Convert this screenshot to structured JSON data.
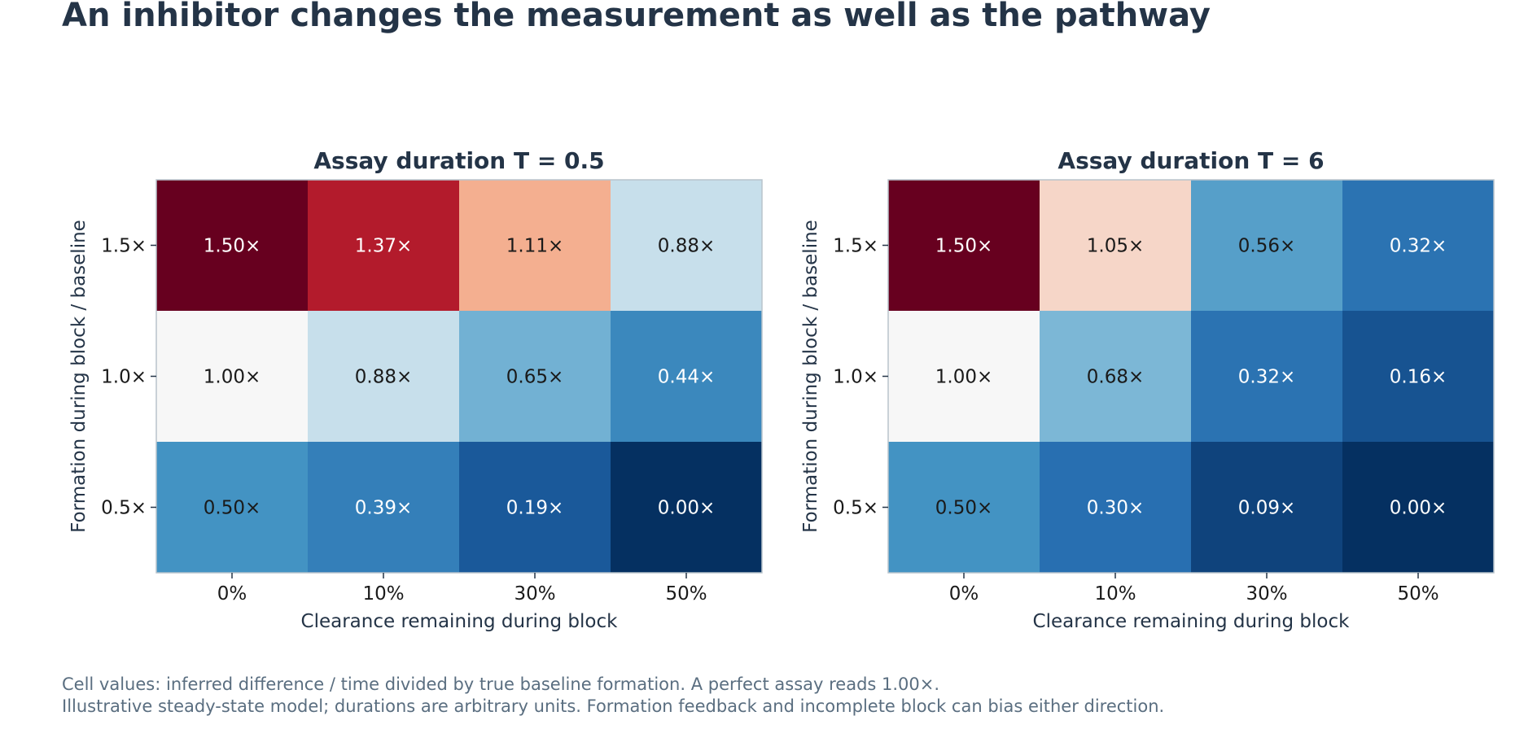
{
  "title": "An inhibitor changes the measurement as well as the pathway",
  "footnotes": [
    "Cell values: inferred difference / time divided by true baseline formation. A perfect assay reads 1.00×.",
    "Illustrative steady-state model; durations are arbitrary units. Formation feedback and incomplete block can bias either direction."
  ],
  "colors": {
    "title": "#243447",
    "axis": "#243447",
    "frame": "#b8c4cc",
    "footnote": "#5a6e80",
    "scale": [
      "#053061",
      "#2166ac",
      "#4393c3",
      "#92c5de",
      "#f7f7f7",
      "#f4a582",
      "#d6604d",
      "#b2182b",
      "#67001f"
    ]
  },
  "chart_data": [
    {
      "type": "heatmap",
      "title": "Assay duration T = 0.5",
      "xlabel": "Clearance remaining during block",
      "ylabel": "Formation during block / baseline",
      "x_ticks": [
        "0%",
        "10%",
        "30%",
        "50%"
      ],
      "y_ticks": [
        "1.5×",
        "1.0×",
        "0.5×"
      ],
      "values": [
        [
          1.5,
          1.37,
          1.11,
          0.88
        ],
        [
          1.0,
          0.88,
          0.65,
          0.44
        ],
        [
          0.5,
          0.39,
          0.19,
          0.0
        ]
      ],
      "labels": [
        [
          "1.50×",
          "1.37×",
          "1.11×",
          "0.88×"
        ],
        [
          "1.00×",
          "0.88×",
          "0.65×",
          "0.44×"
        ],
        [
          "0.50×",
          "0.39×",
          "0.19×",
          "0.00×"
        ]
      ],
      "color_range": [
        0,
        1.5
      ],
      "color_center": 1.0
    },
    {
      "type": "heatmap",
      "title": "Assay duration T = 6",
      "xlabel": "Clearance remaining during block",
      "ylabel": "Formation during block / baseline",
      "x_ticks": [
        "0%",
        "10%",
        "30%",
        "50%"
      ],
      "y_ticks": [
        "1.5×",
        "1.0×",
        "0.5×"
      ],
      "values": [
        [
          1.5,
          1.05,
          0.56,
          0.32
        ],
        [
          1.0,
          0.68,
          0.32,
          0.16
        ],
        [
          0.5,
          0.3,
          0.09,
          0.0
        ]
      ],
      "labels": [
        [
          "1.50×",
          "1.05×",
          "0.56×",
          "0.32×"
        ],
        [
          "1.00×",
          "0.68×",
          "0.32×",
          "0.16×"
        ],
        [
          "0.50×",
          "0.30×",
          "0.09×",
          "0.00×"
        ]
      ],
      "color_range": [
        0,
        1.5
      ],
      "color_center": 1.0
    }
  ]
}
